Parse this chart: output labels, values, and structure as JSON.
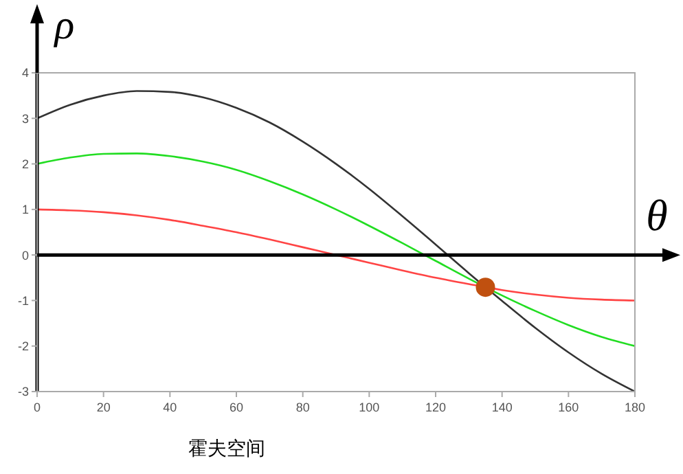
{
  "chart_data": {
    "type": "line",
    "xlabel": "θ",
    "ylabel": "ρ",
    "annotations": [
      "霍夫空间"
    ],
    "x": [
      0,
      10,
      20,
      30,
      40,
      50,
      60,
      70,
      80,
      90,
      100,
      110,
      120,
      130,
      140,
      150,
      160,
      170,
      180
    ],
    "series": [
      {
        "color": "#333333",
        "values": [
          3.0,
          3.3,
          3.5,
          3.6,
          3.58,
          3.46,
          3.23,
          2.91,
          2.49,
          2.0,
          1.45,
          0.85,
          0.23,
          -0.4,
          -1.01,
          -1.6,
          -2.14,
          -2.61,
          -3.0
        ]
      },
      {
        "color": "#22dd22",
        "values": [
          2.0,
          2.14,
          2.22,
          2.23,
          2.17,
          2.05,
          1.87,
          1.62,
          1.33,
          1.0,
          0.64,
          0.26,
          -0.13,
          -0.52,
          -0.89,
          -1.23,
          -1.54,
          -1.8,
          -2.0
        ]
      },
      {
        "color": "#ff4444",
        "values": [
          1.0,
          0.98,
          0.94,
          0.87,
          0.77,
          0.64,
          0.5,
          0.34,
          0.17,
          0.0,
          -0.17,
          -0.34,
          -0.5,
          -0.64,
          -0.77,
          -0.87,
          -0.94,
          -0.98,
          -1.0
        ]
      },
      {
        "type": "scatter",
        "color": "#c0500f",
        "marker": "circle",
        "x": [
          135
        ],
        "values": [
          -0.71
        ]
      }
    ],
    "xlim": [
      0,
      180
    ],
    "xticks": [
      0,
      20,
      40,
      60,
      80,
      100,
      120,
      140,
      160,
      180
    ],
    "ylim": [
      -3,
      4
    ],
    "yticks": [
      -3,
      -2,
      -1,
      0,
      1,
      2,
      3,
      4
    ],
    "ref_lines": [
      {
        "axis": "y",
        "value": 0,
        "color": "#000000"
      }
    ],
    "marker": "none",
    "line_style": "solid",
    "grid": false,
    "legend": false
  }
}
